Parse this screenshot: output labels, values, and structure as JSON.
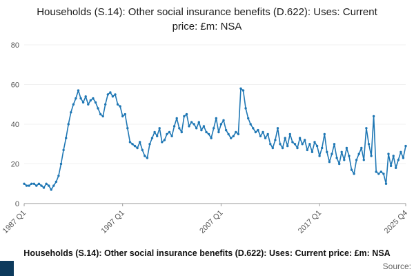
{
  "title": "Households (S.14): Other social insurance benefits (D.622): Uses: Current price: £m: NSA",
  "footer": {
    "caption": "Households (S.14): Other social insurance benefits (D.622): Uses: Current price: £m: NSA",
    "source_label": "Source:"
  },
  "colors": {
    "line": "#1f77b4",
    "logo": "#0d3a5c",
    "axis": "#9a9a9a",
    "tick_text": "#555555"
  },
  "chart_data": {
    "type": "line",
    "title": "Households (S.14): Other social insurance benefits (D.622): Uses: Current price: £m: NSA",
    "xlabel": "",
    "ylabel": "",
    "frequency": "quarterly",
    "x_start": "1987 Q1",
    "x_end": "2025 Q4",
    "x_tick_labels": [
      "1987 Q1",
      "1997 Q1",
      "2007 Q1",
      "2017 Q1",
      "2025 Q4"
    ],
    "x_tick_indices": [
      0,
      40,
      80,
      120,
      155
    ],
    "y_ticks": [
      0,
      20,
      40,
      60,
      80
    ],
    "ylim": [
      0,
      80
    ],
    "legend": "none",
    "grid": "minimal",
    "marker": "dot",
    "values": [
      10,
      9,
      9,
      10,
      10,
      9,
      10,
      9,
      8,
      10,
      9,
      7,
      9,
      11,
      14,
      20,
      27,
      33,
      40,
      46,
      50,
      53,
      57,
      53,
      51,
      54,
      50,
      52,
      53,
      51,
      48,
      45,
      44,
      50,
      55,
      56,
      54,
      55,
      50,
      49,
      44,
      45,
      38,
      31,
      30,
      29,
      28,
      31,
      27,
      24,
      23,
      30,
      33,
      36,
      34,
      38,
      31,
      32,
      35,
      36,
      34,
      39,
      43,
      38,
      36,
      44,
      45,
      39,
      41,
      40,
      38,
      41,
      37,
      39,
      36,
      35,
      33,
      38,
      43,
      36,
      40,
      42,
      37,
      35,
      33,
      34,
      36,
      35,
      58,
      57,
      48,
      43,
      40,
      38,
      36,
      37,
      34,
      36,
      33,
      35,
      30,
      28,
      32,
      38,
      30,
      28,
      33,
      29,
      35,
      31,
      30,
      28,
      33,
      30,
      32,
      27,
      30,
      26,
      31,
      29,
      24,
      28,
      35,
      26,
      21,
      25,
      30,
      23,
      20,
      26,
      22,
      28,
      24,
      17,
      15,
      22,
      25,
      28,
      22,
      38,
      30,
      24,
      44,
      16,
      15,
      16,
      15,
      10,
      25,
      19,
      24,
      18,
      22,
      26,
      23,
      29
    ]
  }
}
